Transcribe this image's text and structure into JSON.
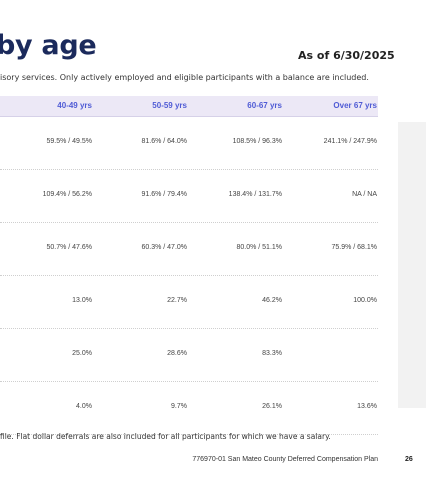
{
  "header": {
    "title": "by age",
    "as_of": "As of 6/30/2025",
    "subtitle": "isory services. Only actively employed and eligible participants with a balance are included."
  },
  "table": {
    "columns": [
      "40-49 yrs",
      "50-59 yrs",
      "60-67 yrs",
      "Over 67 yrs"
    ],
    "rows": [
      [
        "59.5% / 49.5%",
        "81.6% / 64.0%",
        "108.5% / 96.3%",
        "241.1% / 247.9%"
      ],
      [
        "109.4% / 56.2%",
        "91.6% / 79.4%",
        "138.4% / 131.7%",
        "NA / NA"
      ],
      [
        "50.7% / 47.6%",
        "60.3% / 47.0%",
        "80.0% / 51.1%",
        "75.9% / 68.1%"
      ],
      [
        "13.0%",
        "22.7%",
        "46.2%",
        "100.0%"
      ],
      [
        "25.0%",
        "28.6%",
        "83.3%",
        ""
      ],
      [
        "4.0%",
        "9.7%",
        "26.1%",
        "13.6%"
      ]
    ]
  },
  "footnote": "file. Flat dollar deferrals are also included for all participants for which we have a salary.",
  "footer": {
    "document": "776970-01 San Mateo County Deferred Compensation Plan",
    "page": "26"
  }
}
